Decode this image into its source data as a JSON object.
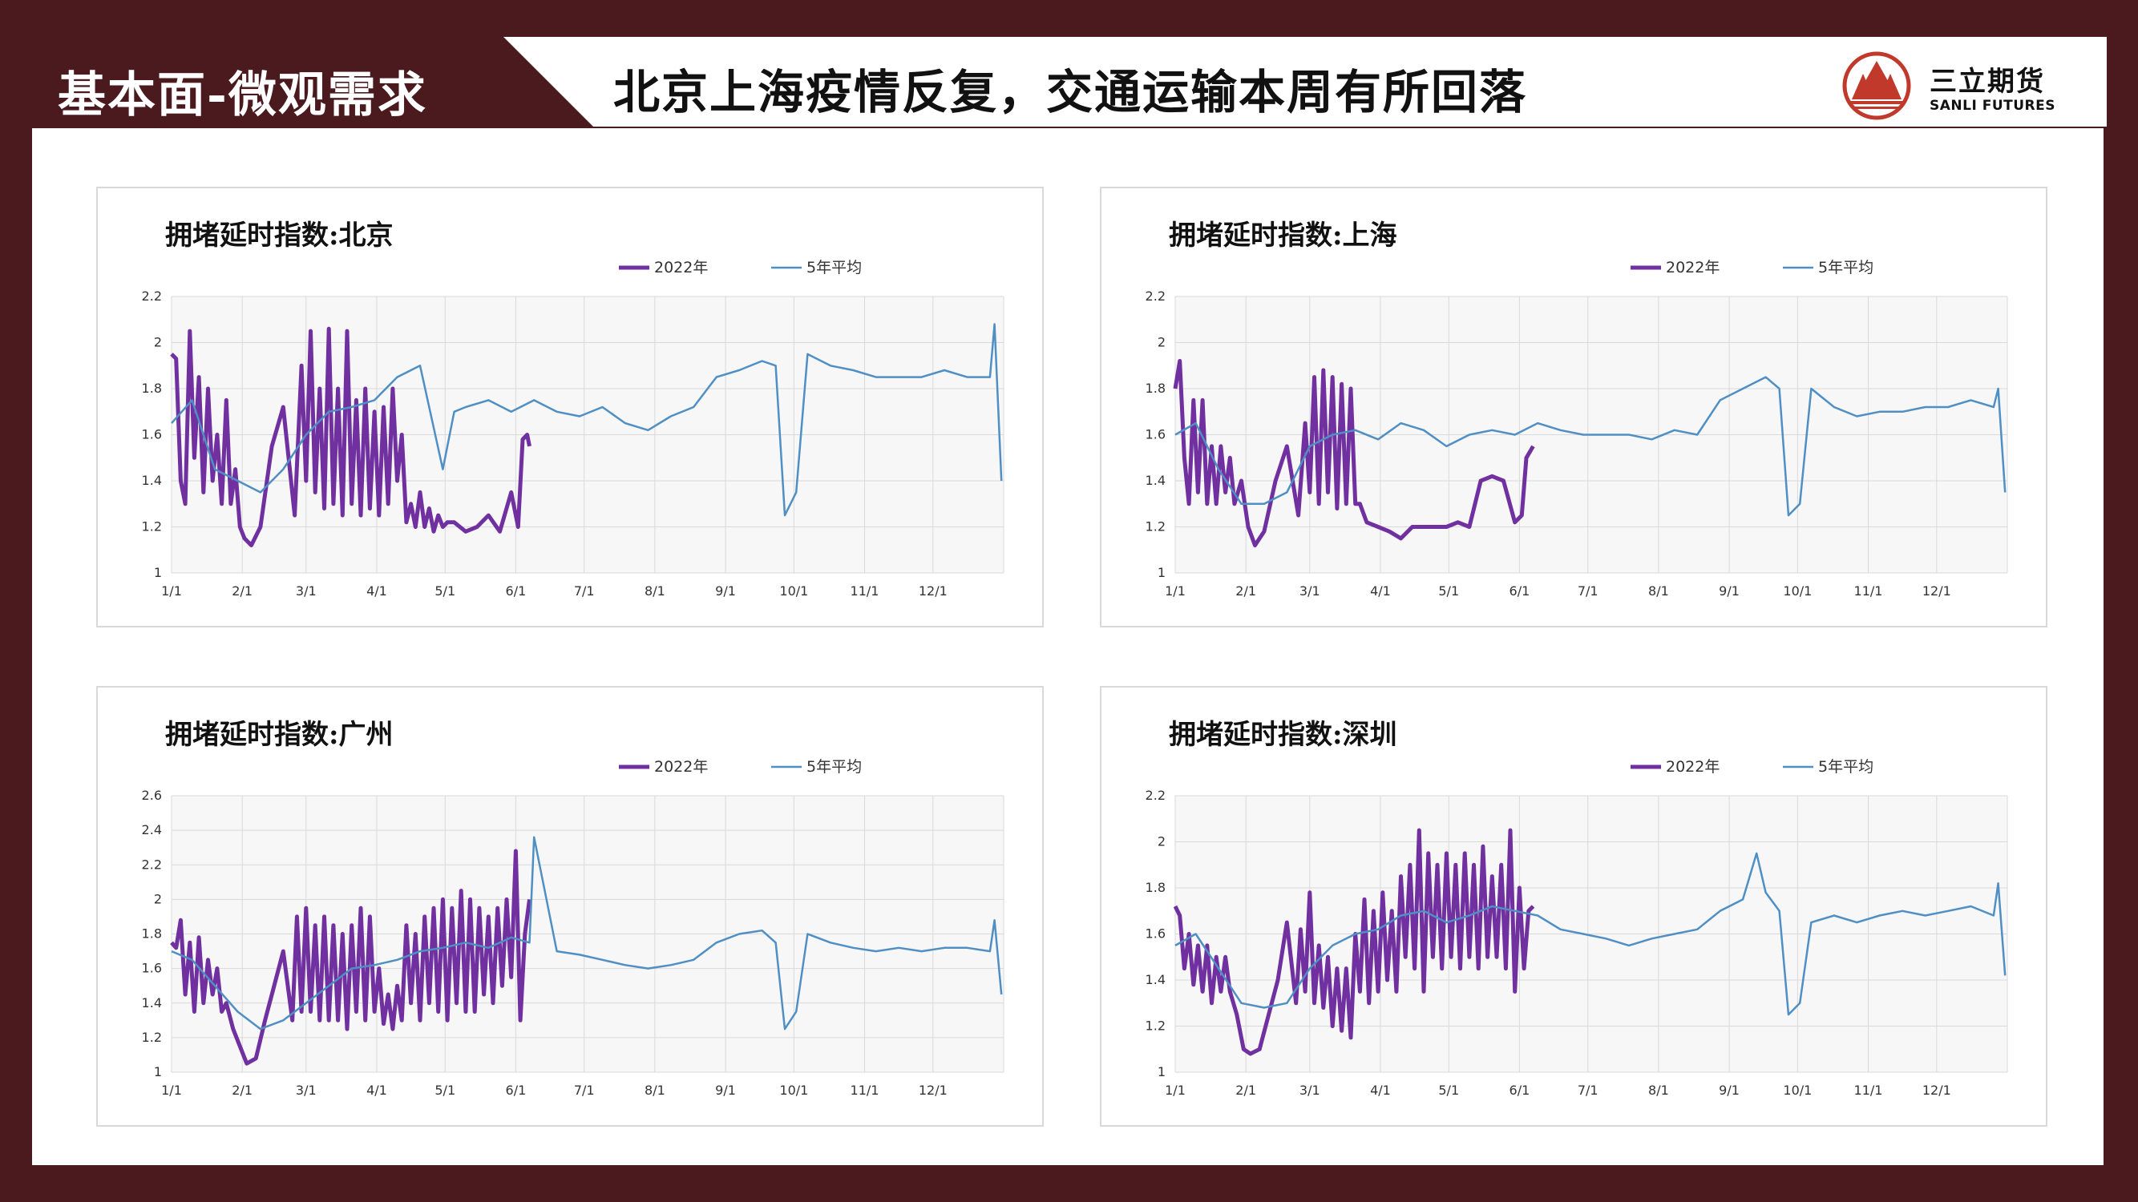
{
  "header": {
    "section_label": "基本面-微观需求",
    "title": "北京上海疫情反复，交通运输本周有所回落",
    "logo_cn": "三立期货",
    "logo_en": "SANLI FUTURES"
  },
  "colors": {
    "frame": "#4a1a1e",
    "series_2022": "#7030a0",
    "series_avg": "#4f8fc4",
    "logo_red": "#c0392b"
  },
  "chart_data": [
    {
      "type": "line",
      "title": "拥堵延时指数:北京",
      "xticks": [
        "1/1",
        "2/1",
        "3/1",
        "4/1",
        "5/1",
        "6/1",
        "7/1",
        "8/1",
        "9/1",
        "10/1",
        "11/1",
        "12/1"
      ],
      "ylim": [
        1,
        2.2
      ],
      "yticks": [
        "1",
        "1.2",
        "1.4",
        "1.6",
        "1.8",
        "2",
        "2.2"
      ],
      "legend": [
        "2022年",
        "5年平均"
      ],
      "legend_position": "top",
      "grid": true,
      "series": [
        {
          "name": "2022年",
          "color": "#7030a0",
          "x": [
            1,
            3,
            5,
            7,
            9,
            11,
            13,
            15,
            17,
            19,
            21,
            23,
            25,
            27,
            29,
            31,
            33,
            36,
            40,
            45,
            50,
            55,
            58,
            60,
            62,
            64,
            66,
            68,
            70,
            72,
            74,
            76,
            78,
            80,
            82,
            84,
            86,
            88,
            90,
            92,
            94,
            96,
            98,
            100,
            102,
            104,
            106,
            108,
            110,
            112,
            114,
            116,
            118,
            120,
            122,
            125,
            130,
            135,
            140,
            145,
            150,
            153,
            155,
            157,
            158
          ],
          "y": [
            1.95,
            1.93,
            1.4,
            1.3,
            2.05,
            1.5,
            1.85,
            1.35,
            1.8,
            1.4,
            1.6,
            1.3,
            1.75,
            1.3,
            1.45,
            1.2,
            1.15,
            1.12,
            1.2,
            1.55,
            1.72,
            1.25,
            1.9,
            1.4,
            2.05,
            1.35,
            1.8,
            1.28,
            2.06,
            1.3,
            1.8,
            1.25,
            2.05,
            1.3,
            1.75,
            1.25,
            1.8,
            1.28,
            1.7,
            1.25,
            1.72,
            1.3,
            1.8,
            1.4,
            1.6,
            1.22,
            1.3,
            1.2,
            1.35,
            1.2,
            1.28,
            1.18,
            1.25,
            1.2,
            1.22,
            1.22,
            1.18,
            1.2,
            1.25,
            1.18,
            1.35,
            1.2,
            1.58,
            1.6,
            1.55
          ]
        },
        {
          "name": "5年平均",
          "color": "#4f8fc4",
          "x": [
            1,
            10,
            20,
            30,
            40,
            50,
            60,
            70,
            80,
            90,
            100,
            110,
            120,
            125,
            130,
            140,
            150,
            160,
            170,
            180,
            190,
            200,
            210,
            220,
            230,
            240,
            250,
            260,
            266,
            270,
            275,
            280,
            290,
            300,
            310,
            320,
            330,
            340,
            350,
            360,
            362,
            365
          ],
          "y": [
            1.65,
            1.75,
            1.45,
            1.4,
            1.35,
            1.45,
            1.6,
            1.7,
            1.72,
            1.75,
            1.85,
            1.9,
            1.45,
            1.7,
            1.72,
            1.75,
            1.7,
            1.75,
            1.7,
            1.68,
            1.72,
            1.65,
            1.62,
            1.68,
            1.72,
            1.85,
            1.88,
            1.92,
            1.9,
            1.25,
            1.35,
            1.95,
            1.9,
            1.88,
            1.85,
            1.85,
            1.85,
            1.88,
            1.85,
            1.85,
            2.08,
            1.4
          ]
        }
      ]
    },
    {
      "type": "line",
      "title": "拥堵延时指数:上海",
      "xticks": [
        "1/1",
        "2/1",
        "3/1",
        "4/1",
        "5/1",
        "6/1",
        "7/1",
        "8/1",
        "9/1",
        "10/1",
        "11/1",
        "12/1"
      ],
      "ylim": [
        1,
        2.2
      ],
      "yticks": [
        "1",
        "1.2",
        "1.4",
        "1.6",
        "1.8",
        "2",
        "2.2"
      ],
      "legend": [
        "2022年",
        "5年平均"
      ],
      "legend_position": "top",
      "grid": true,
      "series": [
        {
          "name": "2022年",
          "color": "#7030a0",
          "x": [
            1,
            3,
            5,
            7,
            9,
            11,
            13,
            15,
            17,
            19,
            21,
            23,
            25,
            27,
            30,
            33,
            36,
            40,
            45,
            50,
            55,
            58,
            60,
            62,
            64,
            66,
            68,
            70,
            72,
            74,
            76,
            78,
            80,
            82,
            85,
            90,
            95,
            100,
            105,
            110,
            115,
            120,
            125,
            130,
            135,
            140,
            145,
            150,
            153,
            155,
            158
          ],
          "y": [
            1.8,
            1.92,
            1.5,
            1.3,
            1.75,
            1.35,
            1.75,
            1.3,
            1.55,
            1.3,
            1.55,
            1.35,
            1.5,
            1.3,
            1.4,
            1.2,
            1.12,
            1.18,
            1.4,
            1.55,
            1.25,
            1.65,
            1.35,
            1.85,
            1.3,
            1.88,
            1.35,
            1.85,
            1.28,
            1.82,
            1.3,
            1.8,
            1.3,
            1.3,
            1.22,
            1.2,
            1.18,
            1.15,
            1.2,
            1.2,
            1.2,
            1.2,
            1.22,
            1.2,
            1.4,
            1.42,
            1.4,
            1.22,
            1.25,
            1.5,
            1.55
          ]
        },
        {
          "name": "5年平均",
          "color": "#4f8fc4",
          "x": [
            1,
            10,
            20,
            30,
            40,
            50,
            60,
            70,
            80,
            90,
            100,
            110,
            120,
            130,
            140,
            150,
            160,
            170,
            180,
            190,
            200,
            210,
            220,
            230,
            240,
            250,
            260,
            266,
            270,
            275,
            280,
            290,
            300,
            310,
            320,
            330,
            340,
            350,
            360,
            362,
            365
          ],
          "y": [
            1.6,
            1.65,
            1.45,
            1.3,
            1.3,
            1.35,
            1.55,
            1.6,
            1.62,
            1.58,
            1.65,
            1.62,
            1.55,
            1.6,
            1.62,
            1.6,
            1.65,
            1.62,
            1.6,
            1.6,
            1.6,
            1.58,
            1.62,
            1.6,
            1.75,
            1.8,
            1.85,
            1.8,
            1.25,
            1.3,
            1.8,
            1.72,
            1.68,
            1.7,
            1.7,
            1.72,
            1.72,
            1.75,
            1.72,
            1.8,
            1.35
          ]
        }
      ]
    },
    {
      "type": "line",
      "title": "拥堵延时指数:广州",
      "xticks": [
        "1/1",
        "2/1",
        "3/1",
        "4/1",
        "5/1",
        "6/1",
        "7/1",
        "8/1",
        "9/1",
        "10/1",
        "11/1",
        "12/1"
      ],
      "ylim": [
        1,
        2.6
      ],
      "yticks": [
        "1",
        "1.2",
        "1.4",
        "1.6",
        "1.8",
        "2",
        "2.2",
        "2.4",
        "2.6"
      ],
      "legend": [
        "2022年",
        "5年平均"
      ],
      "legend_position": "top",
      "grid": true,
      "series": [
        {
          "name": "2022年",
          "color": "#7030a0",
          "x": [
            1,
            3,
            5,
            7,
            9,
            11,
            13,
            15,
            17,
            19,
            21,
            23,
            25,
            28,
            31,
            34,
            38,
            42,
            46,
            50,
            54,
            56,
            58,
            60,
            62,
            64,
            66,
            68,
            70,
            72,
            74,
            76,
            78,
            80,
            82,
            84,
            86,
            88,
            90,
            92,
            94,
            96,
            98,
            100,
            102,
            104,
            106,
            108,
            110,
            112,
            114,
            116,
            118,
            120,
            122,
            124,
            126,
            128,
            130,
            132,
            134,
            136,
            138,
            140,
            142,
            144,
            146,
            148,
            150,
            152,
            154,
            156,
            158
          ],
          "y": [
            1.75,
            1.72,
            1.88,
            1.45,
            1.75,
            1.35,
            1.78,
            1.4,
            1.65,
            1.45,
            1.6,
            1.35,
            1.4,
            1.25,
            1.15,
            1.05,
            1.08,
            1.3,
            1.5,
            1.7,
            1.3,
            1.9,
            1.35,
            1.95,
            1.35,
            1.85,
            1.3,
            1.9,
            1.3,
            1.85,
            1.3,
            1.8,
            1.25,
            1.85,
            1.35,
            1.95,
            1.3,
            1.9,
            1.35,
            1.6,
            1.28,
            1.45,
            1.25,
            1.5,
            1.3,
            1.85,
            1.4,
            1.8,
            1.3,
            1.9,
            1.4,
            1.95,
            1.35,
            2.0,
            1.3,
            1.95,
            1.4,
            2.05,
            1.35,
            2.0,
            1.35,
            1.95,
            1.45,
            1.9,
            1.4,
            1.95,
            1.5,
            2.0,
            1.55,
            2.28,
            1.3,
            1.8,
            2.0
          ]
        },
        {
          "name": "5年平均",
          "color": "#4f8fc4",
          "x": [
            1,
            10,
            20,
            30,
            40,
            50,
            60,
            70,
            80,
            90,
            100,
            110,
            120,
            130,
            140,
            150,
            158,
            160,
            170,
            180,
            190,
            200,
            210,
            220,
            230,
            240,
            250,
            260,
            266,
            270,
            275,
            280,
            290,
            300,
            310,
            320,
            330,
            340,
            350,
            360,
            362,
            365
          ],
          "y": [
            1.7,
            1.65,
            1.5,
            1.35,
            1.25,
            1.3,
            1.4,
            1.5,
            1.6,
            1.62,
            1.65,
            1.7,
            1.72,
            1.75,
            1.72,
            1.78,
            1.75,
            2.36,
            1.7,
            1.68,
            1.65,
            1.62,
            1.6,
            1.62,
            1.65,
            1.75,
            1.8,
            1.82,
            1.75,
            1.25,
            1.35,
            1.8,
            1.75,
            1.72,
            1.7,
            1.72,
            1.7,
            1.72,
            1.72,
            1.7,
            1.88,
            1.45
          ]
        }
      ]
    },
    {
      "type": "line",
      "title": "拥堵延时指数:深圳",
      "xticks": [
        "1/1",
        "2/1",
        "3/1",
        "4/1",
        "5/1",
        "6/1",
        "7/1",
        "8/1",
        "9/1",
        "10/1",
        "11/1",
        "12/1"
      ],
      "ylim": [
        1,
        2.2
      ],
      "yticks": [
        "1",
        "1.2",
        "1.4",
        "1.6",
        "1.8",
        "2",
        "2.2"
      ],
      "legend": [
        "2022年",
        "5年平均"
      ],
      "legend_position": "top",
      "grid": true,
      "series": [
        {
          "name": "2022年",
          "color": "#7030a0",
          "x": [
            1,
            3,
            5,
            7,
            9,
            11,
            13,
            15,
            17,
            19,
            21,
            23,
            25,
            28,
            31,
            34,
            38,
            42,
            46,
            50,
            54,
            56,
            58,
            60,
            62,
            64,
            66,
            68,
            70,
            72,
            74,
            76,
            78,
            80,
            82,
            84,
            86,
            88,
            90,
            92,
            94,
            96,
            98,
            100,
            102,
            104,
            106,
            108,
            110,
            112,
            114,
            116,
            118,
            120,
            122,
            124,
            126,
            128,
            130,
            132,
            134,
            136,
            138,
            140,
            142,
            144,
            146,
            148,
            150,
            152,
            154,
            156,
            158
          ],
          "y": [
            1.72,
            1.68,
            1.45,
            1.6,
            1.38,
            1.55,
            1.35,
            1.55,
            1.3,
            1.5,
            1.35,
            1.5,
            1.35,
            1.25,
            1.1,
            1.08,
            1.1,
            1.25,
            1.4,
            1.65,
            1.3,
            1.62,
            1.35,
            1.78,
            1.3,
            1.55,
            1.28,
            1.5,
            1.2,
            1.45,
            1.18,
            1.45,
            1.15,
            1.6,
            1.35,
            1.75,
            1.3,
            1.7,
            1.35,
            1.78,
            1.4,
            1.7,
            1.35,
            1.85,
            1.5,
            1.9,
            1.45,
            2.05,
            1.35,
            1.95,
            1.5,
            1.9,
            1.45,
            1.95,
            1.5,
            1.9,
            1.45,
            1.95,
            1.5,
            1.9,
            1.45,
            1.98,
            1.5,
            1.85,
            1.5,
            1.9,
            1.45,
            2.05,
            1.35,
            1.8,
            1.45,
            1.7,
            1.72
          ]
        },
        {
          "name": "5年平均",
          "color": "#4f8fc4",
          "x": [
            1,
            10,
            20,
            30,
            40,
            50,
            60,
            70,
            80,
            90,
            100,
            110,
            120,
            130,
            140,
            150,
            160,
            170,
            180,
            190,
            200,
            210,
            220,
            230,
            240,
            250,
            256,
            260,
            266,
            270,
            275,
            280,
            290,
            300,
            310,
            320,
            330,
            340,
            350,
            360,
            362,
            365
          ],
          "y": [
            1.55,
            1.6,
            1.45,
            1.3,
            1.28,
            1.3,
            1.45,
            1.55,
            1.6,
            1.62,
            1.68,
            1.7,
            1.65,
            1.68,
            1.72,
            1.7,
            1.68,
            1.62,
            1.6,
            1.58,
            1.55,
            1.58,
            1.6,
            1.62,
            1.7,
            1.75,
            1.95,
            1.78,
            1.7,
            1.25,
            1.3,
            1.65,
            1.68,
            1.65,
            1.68,
            1.7,
            1.68,
            1.7,
            1.72,
            1.68,
            1.82,
            1.42
          ]
        }
      ]
    }
  ]
}
